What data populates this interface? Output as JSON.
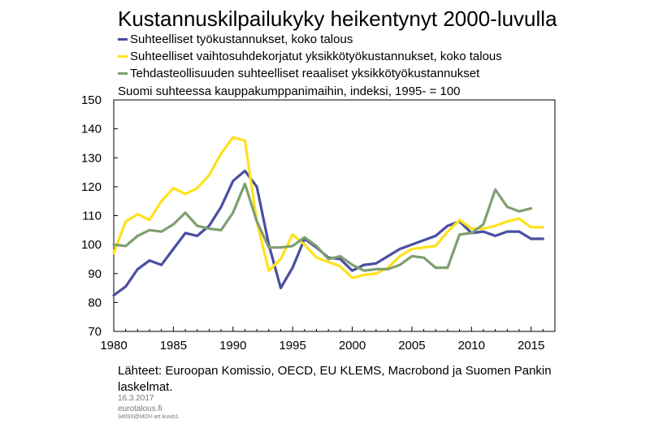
{
  "header": {
    "title": "Kustannuskilpailukyky heikentynyt 2000-luvulla",
    "subtitle": "Suomi suhteessa kauppakumppanimaihin,  indeksi, 1995- = 100"
  },
  "legend": [
    {
      "label": "Suhteelliset työkustannukset, koko talous",
      "color": "#4a4ea1"
    },
    {
      "label": "Suhteelliset vaihtosuhdekorjatut yksikkötyökustannukset, koko talous",
      "color": "#ffe11a"
    },
    {
      "label": "Tehdasteollisuuden suhteelliset reaaliset yksikkötyökustannukset",
      "color": "#7fa06f"
    }
  ],
  "footer": {
    "source": "Lähteet: Euroopan Komissio, OECD, EU KLEMS, Macrobond ja Suomen Pankin laskelmat.",
    "date": "16.3.2017",
    "site": "eurotalous.fi",
    "code": "34093@MOV-art  kuvio1"
  },
  "chart_data": {
    "type": "line",
    "title": "Kustannuskilpailukyky heikentynyt 2000-luvulla",
    "subtitle": "Suomi suhteessa kauppakumppanimaihin,  indeksi, 1995- = 100",
    "xlabel": "",
    "ylabel": "",
    "xlim": [
      1980,
      2017
    ],
    "ylim": [
      70,
      150
    ],
    "x_ticks": [
      1980,
      1985,
      1990,
      1995,
      2000,
      2005,
      2010,
      2015
    ],
    "y_ticks": [
      70,
      80,
      90,
      100,
      110,
      120,
      130,
      140,
      150
    ],
    "grid": false,
    "legend_position": "top",
    "series": [
      {
        "name": "Suhteelliset työkustannukset, koko talous",
        "color": "#4a4ea1",
        "x": [
          1980,
          1981,
          1982,
          1983,
          1984,
          1985,
          1986,
          1987,
          1988,
          1989,
          1990,
          1991,
          1992,
          1993,
          1994,
          1995,
          1996,
          1997,
          1998,
          1999,
          2000,
          2001,
          2002,
          2003,
          2004,
          2005,
          2006,
          2007,
          2008,
          2009,
          2010,
          2011,
          2012,
          2013,
          2014,
          2015,
          2016
        ],
        "y": [
          82.5,
          85.5,
          91.5,
          94.5,
          93,
          98.5,
          104,
          103,
          106.5,
          113,
          122,
          125.5,
          120,
          100,
          85,
          92,
          102,
          99,
          95.5,
          95,
          91,
          93,
          93.5,
          96,
          98.5,
          100,
          101.5,
          103,
          106.5,
          108,
          104,
          104.5,
          103,
          104.5,
          104.5,
          102,
          102
        ]
      },
      {
        "name": "Suhteelliset vaihtosuhdekorjatut yksikkötyökustannukset, koko talous",
        "color": "#ffe11a",
        "x": [
          1980,
          1981,
          1982,
          1983,
          1984,
          1985,
          1986,
          1987,
          1988,
          1989,
          1990,
          1991,
          1992,
          1993,
          1994,
          1995,
          1996,
          1997,
          1998,
          1999,
          2000,
          2001,
          2002,
          2003,
          2004,
          2005,
          2006,
          2007,
          2008,
          2009,
          2010,
          2011,
          2012,
          2013,
          2014,
          2015,
          2016
        ],
        "y": [
          97,
          108,
          110.5,
          108.5,
          115,
          119.5,
          117.5,
          119.5,
          124,
          131.5,
          137,
          136,
          108,
          91,
          95,
          103.5,
          100,
          95.5,
          94,
          92.5,
          88.5,
          89.5,
          90,
          92,
          96,
          98.5,
          99,
          99.5,
          104.5,
          108.5,
          105.5,
          105.5,
          106.5,
          108,
          109,
          106,
          106
        ]
      },
      {
        "name": "Tehdasteollisuuden suhteelliset reaaliset yksikkötyökustannukset",
        "color": "#7fa06f",
        "x": [
          1980,
          1981,
          1982,
          1983,
          1984,
          1985,
          1986,
          1987,
          1988,
          1989,
          1990,
          1991,
          1992,
          1993,
          1994,
          1995,
          1996,
          1997,
          1998,
          1999,
          2000,
          2001,
          2002,
          2003,
          2004,
          2005,
          2006,
          2007,
          2008,
          2009,
          2010,
          2011,
          2012,
          2013,
          2014,
          2015
        ],
        "y": [
          100,
          99.5,
          103,
          105,
          104.5,
          107,
          111,
          106.5,
          105.5,
          105,
          111,
          121,
          108,
          99,
          99,
          99.5,
          102.5,
          99.5,
          95,
          96,
          93,
          91,
          91.5,
          91.5,
          93,
          96,
          95.5,
          92,
          92,
          103.5,
          104,
          107,
          119,
          113,
          111.5,
          112.5
        ]
      }
    ]
  }
}
